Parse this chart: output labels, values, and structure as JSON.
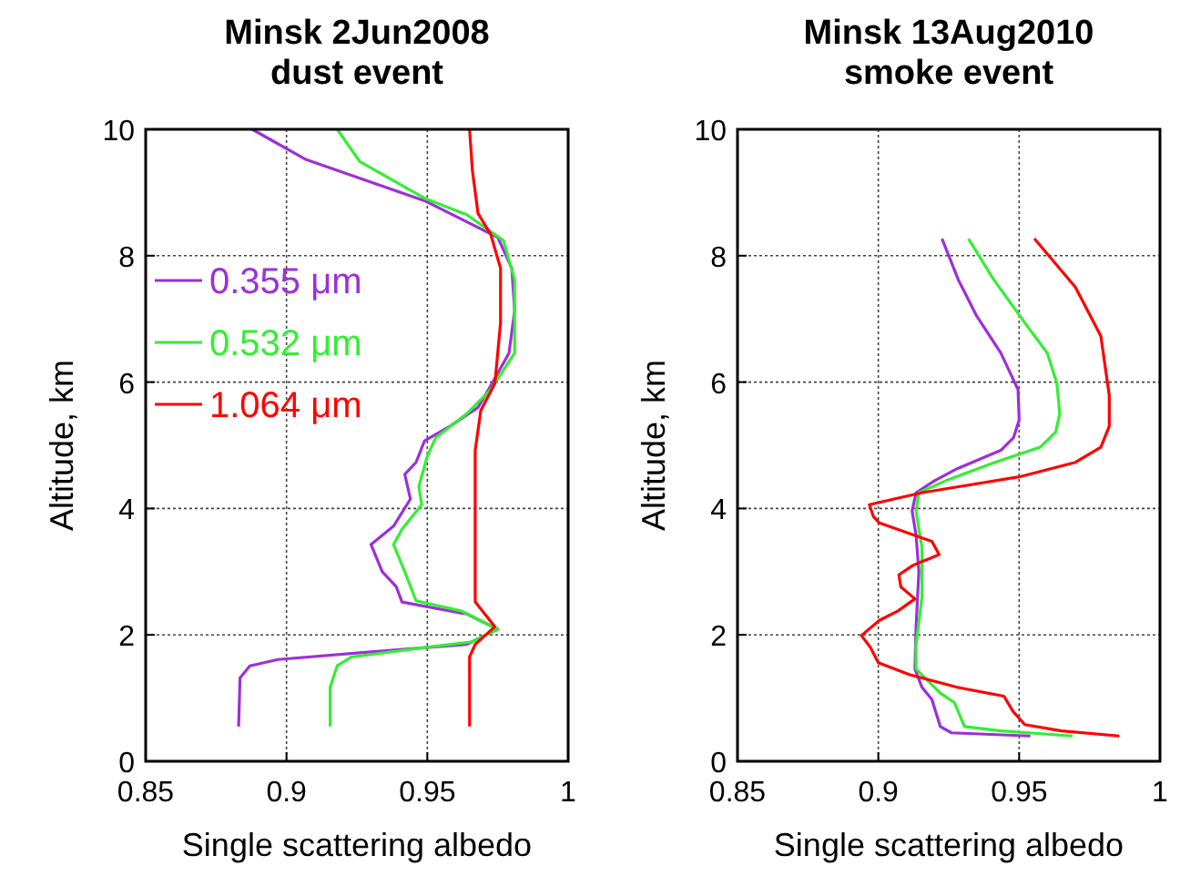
{
  "chart_data": [
    {
      "type": "line",
      "title": "Minsk 2Jun2008\ndust event",
      "xlabel": "Single scattering albedo",
      "ylabel": "Altitude, km",
      "xlim": [
        0.85,
        1
      ],
      "xticks": [
        0.85,
        0.9,
        0.95,
        1
      ],
      "ylim": [
        0,
        10
      ],
      "yticks": [
        0,
        2,
        4,
        6,
        8,
        10
      ],
      "grid": true,
      "legend": "left",
      "series": [
        {
          "name": "0.355 μm",
          "color": "#9b30d9",
          "x": [
            0.8878,
            0.907,
            0.949,
            0.975,
            0.98,
            0.981,
            0.979,
            0.973,
            0.968,
            0.958,
            0.949,
            0.946,
            0.942,
            0.944,
            0.938,
            0.93,
            0.934,
            0.939,
            0.941,
            0.964,
            0.975,
            0.964,
            0.927,
            0.897,
            0.887,
            0.8835,
            0.883
          ],
          "values": [
            10,
            9.52,
            8.87,
            8.29,
            7.8,
            7.13,
            6.46,
            5.98,
            5.6,
            5.3,
            5.07,
            4.73,
            4.54,
            4.15,
            3.72,
            3.43,
            3.0,
            2.76,
            2.52,
            2.33,
            2.09,
            1.85,
            1.72,
            1.61,
            1.51,
            1.32,
            0.55
          ]
        },
        {
          "name": "0.532 μm",
          "color": "#33ee33",
          "x": [
            0.918,
            0.926,
            0.949,
            0.964,
            0.977,
            0.981,
            0.981,
            0.9725,
            0.964,
            0.953,
            0.95,
            0.947,
            0.948,
            0.941,
            0.938,
            0.942,
            0.946,
            0.962,
            0.975,
            0.966,
            0.949,
            0.923,
            0.918,
            0.9155,
            0.9155
          ],
          "values": [
            10,
            9.49,
            8.91,
            8.65,
            8.24,
            7.62,
            6.46,
            5.88,
            5.5,
            5.12,
            4.83,
            4.35,
            4.06,
            3.67,
            3.43,
            3.0,
            2.54,
            2.38,
            2.09,
            1.89,
            1.8,
            1.65,
            1.51,
            1.17,
            0.55
          ]
        },
        {
          "name": "1.064 μm",
          "color": "#ff0000",
          "x": [
            0.965,
            0.966,
            0.968,
            0.9725,
            0.976,
            0.976,
            0.974,
            0.969,
            0.967,
            0.967,
            0.967,
            0.974,
            0.967,
            0.965,
            0.965
          ],
          "values": [
            10,
            9.35,
            8.67,
            8.34,
            7.8,
            6.94,
            5.98,
            5.55,
            4.92,
            3.58,
            2.52,
            2.13,
            1.85,
            1.65,
            0.55
          ]
        }
      ]
    },
    {
      "type": "line",
      "title": "Minsk 13Aug2010\nsmoke event",
      "xlabel": "Single scattering albedo",
      "ylabel": "Altitude, km",
      "xlim": [
        0.85,
        1
      ],
      "xticks": [
        0.85,
        0.9,
        0.95,
        1
      ],
      "ylim": [
        0,
        10
      ],
      "yticks": [
        0,
        2,
        4,
        6,
        8,
        10
      ],
      "grid": true,
      "series": [
        {
          "color": "#9b30d9",
          "x": [
            0.9226,
            0.9284,
            0.935,
            0.9435,
            0.9496,
            0.95,
            0.948,
            0.9435,
            0.928,
            0.92,
            0.9134,
            0.912,
            0.9134,
            0.9144,
            0.9134,
            0.913,
            0.9155,
            0.919,
            0.922,
            0.926,
            0.954
          ],
          "values": [
            8.27,
            7.62,
            7.04,
            6.46,
            5.88,
            5.4,
            5.12,
            4.92,
            4.63,
            4.44,
            4.25,
            3.96,
            3.58,
            3.0,
            2.13,
            1.46,
            1.17,
            0.98,
            0.55,
            0.45,
            0.4
          ]
        },
        {
          "color": "#33ee33",
          "x": [
            0.932,
            0.941,
            0.952,
            0.96,
            0.9634,
            0.9644,
            0.963,
            0.9575,
            0.9414,
            0.924,
            0.9144,
            0.9134,
            0.9155,
            0.9155,
            0.9134,
            0.9134,
            0.922,
            0.927,
            0.9306,
            0.9435,
            0.969
          ],
          "values": [
            8.27,
            7.62,
            6.94,
            6.46,
            5.98,
            5.5,
            5.21,
            4.97,
            4.73,
            4.44,
            4.25,
            3.96,
            3.38,
            2.6,
            1.85,
            1.46,
            1.08,
            0.93,
            0.55,
            0.48,
            0.4
          ]
        },
        {
          "color": "#ff0000",
          "x": [
            0.9554,
            0.97,
            0.979,
            0.982,
            0.982,
            0.979,
            0.97,
            0.95,
            0.9155,
            0.8968,
            0.8983,
            0.9004,
            0.919,
            0.9216,
            0.9123,
            0.9073,
            0.908,
            0.913,
            0.907,
            0.9004,
            0.894,
            0.8972,
            0.9,
            0.9112,
            0.928,
            0.9446,
            0.9478,
            0.952,
            0.965,
            0.9856
          ],
          "values": [
            8.27,
            7.5,
            6.73,
            5.79,
            5.3,
            4.97,
            4.73,
            4.5,
            4.25,
            4.06,
            3.87,
            3.77,
            3.48,
            3.27,
            3.1,
            2.95,
            2.76,
            2.57,
            2.38,
            2.23,
            1.99,
            1.8,
            1.56,
            1.37,
            1.17,
            1.03,
            0.79,
            0.58,
            0.48,
            0.4
          ]
        }
      ]
    }
  ]
}
